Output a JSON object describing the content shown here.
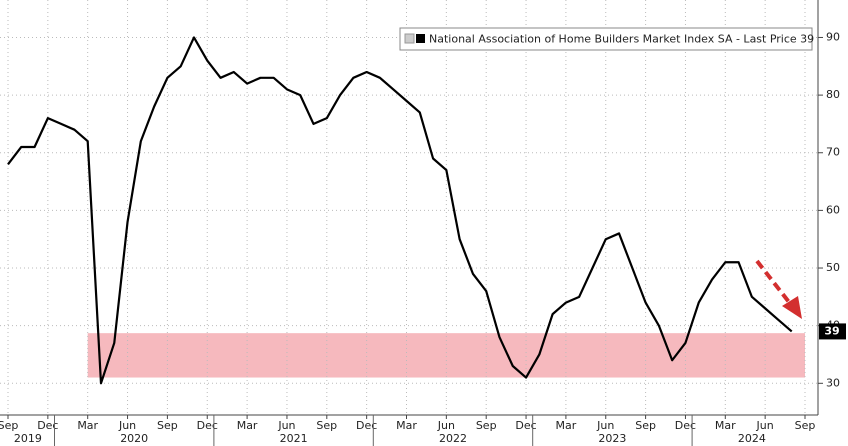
{
  "chart_data": {
    "type": "line",
    "x": [
      "2019-09",
      "2019-10",
      "2019-11",
      "2019-12",
      "2020-01",
      "2020-02",
      "2020-03",
      "2020-04",
      "2020-05",
      "2020-06",
      "2020-07",
      "2020-08",
      "2020-09",
      "2020-10",
      "2020-11",
      "2020-12",
      "2021-01",
      "2021-02",
      "2021-03",
      "2021-04",
      "2021-05",
      "2021-06",
      "2021-07",
      "2021-08",
      "2021-09",
      "2021-10",
      "2021-11",
      "2021-12",
      "2022-01",
      "2022-02",
      "2022-03",
      "2022-04",
      "2022-05",
      "2022-06",
      "2022-07",
      "2022-08",
      "2022-09",
      "2022-10",
      "2022-11",
      "2022-12",
      "2023-01",
      "2023-02",
      "2023-03",
      "2023-04",
      "2023-05",
      "2023-06",
      "2023-07",
      "2023-08",
      "2023-09",
      "2023-10",
      "2023-11",
      "2023-12",
      "2024-01",
      "2024-02",
      "2024-03",
      "2024-04",
      "2024-05",
      "2024-06",
      "2024-07",
      "2024-08"
    ],
    "series": [
      {
        "name": "National Association of Home Builders Market Index SA - Last Price 39",
        "color": "#000000",
        "values": [
          68,
          71,
          71,
          76,
          75,
          74,
          72,
          30,
          37,
          58,
          72,
          78,
          83,
          85,
          90,
          86,
          83,
          84,
          82,
          83,
          83,
          81,
          80,
          75,
          76,
          80,
          83,
          84,
          83,
          81,
          79,
          77,
          69,
          67,
          55,
          49,
          46,
          38,
          33,
          31,
          35,
          42,
          44,
          45,
          50,
          55,
          56,
          50,
          44,
          40,
          34,
          37,
          44,
          48,
          51,
          51,
          45,
          43,
          41,
          39
        ]
      }
    ],
    "last_price": 39,
    "xlim": [
      "2019-09",
      "2024-09"
    ],
    "xticks": [
      {
        "value": "2019-09",
        "label": "Sep"
      },
      {
        "value": "2019-12",
        "label": "Dec"
      },
      {
        "value": "2020-03",
        "label": "Mar"
      },
      {
        "value": "2020-06",
        "label": "Jun"
      },
      {
        "value": "2020-09",
        "label": "Sep"
      },
      {
        "value": "2020-12",
        "label": "Dec"
      },
      {
        "value": "2021-03",
        "label": "Mar"
      },
      {
        "value": "2021-06",
        "label": "Jun"
      },
      {
        "value": "2021-09",
        "label": "Sep"
      },
      {
        "value": "2021-12",
        "label": "Dec"
      },
      {
        "value": "2022-03",
        "label": "Mar"
      },
      {
        "value": "2022-06",
        "label": "Jun"
      },
      {
        "value": "2022-09",
        "label": "Sep"
      },
      {
        "value": "2022-12",
        "label": "Dec"
      },
      {
        "value": "2023-03",
        "label": "Mar"
      },
      {
        "value": "2023-06",
        "label": "Jun"
      },
      {
        "value": "2023-09",
        "label": "Sep"
      },
      {
        "value": "2023-12",
        "label": "Dec"
      },
      {
        "value": "2024-03",
        "label": "Mar"
      },
      {
        "value": "2024-06",
        "label": "Jun"
      },
      {
        "value": "2024-09",
        "label": "Sep"
      }
    ],
    "year_ticks": [
      "2019",
      "2020",
      "2021",
      "2022",
      "2023",
      "2024"
    ],
    "ylim": [
      24.5,
      96.5
    ],
    "yticks": [
      30,
      40,
      50,
      60,
      70,
      80,
      90
    ],
    "grid": true,
    "shaded_band": {
      "ylim": [
        31,
        38.7
      ],
      "xlim": [
        "2020-03",
        "2024-09"
      ],
      "color": "#f6b9be"
    }
  }
}
